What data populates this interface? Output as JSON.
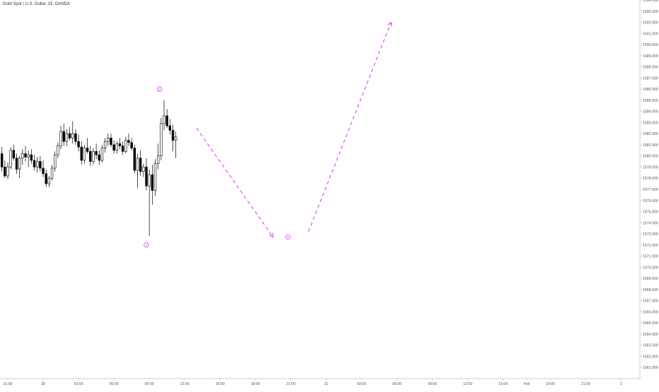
{
  "header": {
    "title": "Gold Spot / U.S. Dollar, 15, OANDA"
  },
  "colors": {
    "annotation": "#e040fb",
    "candle": "#000000",
    "axis_text": "#555555",
    "axis_line": "#cccccc"
  },
  "chart_data": {
    "type": "candlestick",
    "title": "Gold Spot / U.S. Dollar, 15, OANDA",
    "ylim": [
      1560,
      1594
    ],
    "y_ticks": [
      1561,
      1562,
      1563,
      1564,
      1565,
      1566,
      1567,
      1568,
      1569,
      1570,
      1571,
      1572,
      1573,
      1574,
      1575,
      1576,
      1577,
      1578,
      1579,
      1580,
      1581,
      1582,
      1583,
      1584,
      1585,
      1586,
      1587,
      1588,
      1589,
      1590,
      1591,
      1592,
      1593,
      1594
    ],
    "y_tick_labels": [
      "1561.000",
      "1562.000",
      "1563.000",
      "1564.000",
      "1565.000",
      "1566.000",
      "1567.000",
      "1568.000",
      "1569.000",
      "1570.000",
      "1571.000",
      "1572.000",
      "1573.000",
      "1574.000",
      "1575.000",
      "1576.000",
      "1577.000",
      "1578.000",
      "1579.000",
      "1580.000",
      "1581.000",
      "1582.000",
      "1583.000",
      "1584.000",
      "1585.000",
      "1586.000",
      "1587.000",
      "1588.000",
      "1589.000",
      "1590.000",
      "1591.000",
      "1592.000",
      "1593.000",
      "1594.000"
    ],
    "x_ticks": [
      {
        "label": "21:00",
        "bar": 3
      },
      {
        "label": "30",
        "bar": 15
      },
      {
        "label": "03:00",
        "bar": 27
      },
      {
        "label": "06:00",
        "bar": 39
      },
      {
        "label": "09:00",
        "bar": 51
      },
      {
        "label": "12:00",
        "bar": 63
      },
      {
        "label": "15:00",
        "bar": 75
      },
      {
        "label": "18:00",
        "bar": 87
      },
      {
        "label": "21:00",
        "bar": 99
      },
      {
        "label": "31",
        "bar": 111
      },
      {
        "label": "03:00",
        "bar": 123
      },
      {
        "label": "06:00",
        "bar": 135
      },
      {
        "label": "09:00",
        "bar": 147
      },
      {
        "label": "12:00",
        "bar": 159
      },
      {
        "label": "15:00",
        "bar": 171
      },
      {
        "label": "Feb",
        "bar": 179
      },
      {
        "label": "19:00",
        "bar": 187
      },
      {
        "label": "21:00",
        "bar": 199
      },
      {
        "label": "3",
        "bar": 211
      }
    ],
    "candles": [
      [
        1580.2,
        1580.8,
        1578.6,
        1579.0
      ],
      [
        1579.0,
        1579.6,
        1578.0,
        1578.2
      ],
      [
        1578.2,
        1579.4,
        1577.9,
        1579.0
      ],
      [
        1579.0,
        1580.8,
        1578.8,
        1580.5
      ],
      [
        1580.5,
        1581.0,
        1579.6,
        1579.8
      ],
      [
        1579.8,
        1580.2,
        1578.4,
        1578.8
      ],
      [
        1578.8,
        1580.0,
        1578.0,
        1579.8
      ],
      [
        1579.8,
        1580.6,
        1579.2,
        1580.2
      ],
      [
        1580.2,
        1580.9,
        1579.5,
        1579.9
      ],
      [
        1579.9,
        1580.5,
        1579.0,
        1580.1
      ],
      [
        1580.1,
        1580.6,
        1579.3,
        1579.6
      ],
      [
        1579.6,
        1580.1,
        1578.7,
        1579.0
      ],
      [
        1579.0,
        1579.9,
        1578.5,
        1579.5
      ],
      [
        1579.5,
        1580.0,
        1578.6,
        1578.9
      ],
      [
        1578.9,
        1579.6,
        1578.1,
        1578.4
      ],
      [
        1578.4,
        1578.8,
        1577.2,
        1577.5
      ],
      [
        1577.5,
        1578.2,
        1577.2,
        1578.0
      ],
      [
        1578.0,
        1579.2,
        1577.8,
        1578.9
      ],
      [
        1578.9,
        1580.4,
        1578.6,
        1580.1
      ],
      [
        1580.1,
        1581.2,
        1579.8,
        1580.9
      ],
      [
        1580.9,
        1582.7,
        1580.6,
        1582.2
      ],
      [
        1582.2,
        1582.9,
        1580.9,
        1581.3
      ],
      [
        1581.3,
        1582.4,
        1580.9,
        1582.0
      ],
      [
        1582.0,
        1582.6,
        1581.4,
        1581.6
      ],
      [
        1581.6,
        1583.1,
        1581.1,
        1582.0
      ],
      [
        1582.0,
        1582.4,
        1581.0,
        1581.3
      ],
      [
        1581.3,
        1581.9,
        1580.4,
        1580.8
      ],
      [
        1580.8,
        1581.3,
        1579.2,
        1579.6
      ],
      [
        1579.6,
        1581.0,
        1579.3,
        1580.7
      ],
      [
        1580.7,
        1581.6,
        1580.2,
        1580.4
      ],
      [
        1580.4,
        1580.9,
        1579.1,
        1579.5
      ],
      [
        1579.5,
        1580.7,
        1579.2,
        1580.4
      ],
      [
        1580.4,
        1581.1,
        1579.7,
        1580.1
      ],
      [
        1580.1,
        1580.5,
        1579.2,
        1579.6
      ],
      [
        1579.6,
        1581.0,
        1579.4,
        1580.7
      ],
      [
        1580.7,
        1581.6,
        1580.3,
        1581.3
      ],
      [
        1581.3,
        1582.0,
        1580.9,
        1581.6
      ],
      [
        1581.6,
        1582.0,
        1580.8,
        1581.0
      ],
      [
        1581.0,
        1581.4,
        1580.2,
        1580.5
      ],
      [
        1580.5,
        1581.3,
        1580.2,
        1581.1
      ],
      [
        1581.1,
        1581.6,
        1580.6,
        1580.9
      ],
      [
        1580.9,
        1581.3,
        1580.1,
        1580.4
      ],
      [
        1580.4,
        1581.7,
        1580.2,
        1581.4
      ],
      [
        1581.4,
        1582.0,
        1580.9,
        1581.2
      ],
      [
        1581.2,
        1581.6,
        1580.5,
        1580.7
      ],
      [
        1580.7,
        1581.0,
        1578.4,
        1578.7
      ],
      [
        1578.7,
        1580.2,
        1577.1,
        1579.8
      ],
      [
        1579.8,
        1580.5,
        1578.2,
        1578.6
      ],
      [
        1578.6,
        1579.3,
        1578.1,
        1579.0
      ],
      [
        1579.0,
        1579.8,
        1576.9,
        1577.3
      ],
      [
        1577.3,
        1578.8,
        1572.8,
        1578.3
      ],
      [
        1578.3,
        1579.2,
        1575.6,
        1576.9
      ],
      [
        1576.9,
        1579.7,
        1576.4,
        1579.3
      ],
      [
        1579.3,
        1581.1,
        1578.8,
        1580.0
      ],
      [
        1580.0,
        1583.4,
        1579.6,
        1582.9
      ],
      [
        1582.9,
        1585.0,
        1582.3,
        1583.6
      ],
      [
        1583.6,
        1584.2,
        1582.5,
        1582.7
      ],
      [
        1582.7,
        1583.3,
        1581.9,
        1582.3
      ],
      [
        1582.3,
        1582.8,
        1580.4,
        1581.4
      ],
      [
        1581.4,
        1582.2,
        1579.8,
        1581.7
      ]
    ],
    "annotations": {
      "labels": [
        {
          "text": "3",
          "bar": 54.5,
          "price": 1586.0
        },
        {
          "text": "4",
          "bar": 50.0,
          "price": 1572.0
        },
        {
          "text": "5",
          "bar": 98.0,
          "price": 1572.7
        }
      ],
      "arrows": [
        {
          "from": {
            "bar": 67,
            "price": 1582.5
          },
          "to": {
            "bar": 93,
            "price": 1572.7
          }
        },
        {
          "from": {
            "bar": 105,
            "price": 1573.2
          },
          "to": {
            "bar": 133,
            "price": 1592.0
          }
        }
      ]
    }
  }
}
